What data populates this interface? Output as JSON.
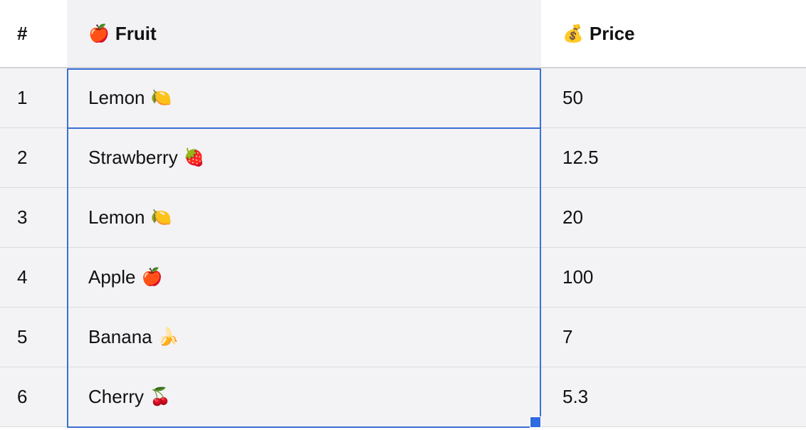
{
  "header": {
    "num_label": "#",
    "fruit_icon": "🍎",
    "fruit_icon_name": "apple-icon",
    "fruit_label": "Fruit",
    "price_icon": "💰",
    "price_icon_name": "money-bag-icon",
    "price_label": "Price"
  },
  "rows": [
    {
      "num": "1",
      "fruit": "Lemon",
      "emoji": "🍋",
      "price": "50"
    },
    {
      "num": "2",
      "fruit": "Strawberry",
      "emoji": "🍓",
      "price": "12.5"
    },
    {
      "num": "3",
      "fruit": "Lemon",
      "emoji": "🍋",
      "price": "20"
    },
    {
      "num": "4",
      "fruit": "Apple",
      "emoji": "🍎",
      "price": "100"
    },
    {
      "num": "5",
      "fruit": "Banana",
      "emoji": "🍌",
      "price": "7"
    },
    {
      "num": "6",
      "fruit": "Cherry",
      "emoji": "🍒",
      "price": "5.3"
    }
  ],
  "colors": {
    "selection": "#3b6fd4",
    "fill_handle": "#2f6be0",
    "row_background": "#f3f3f6",
    "header_fruit_background": "#f2f2f5"
  }
}
